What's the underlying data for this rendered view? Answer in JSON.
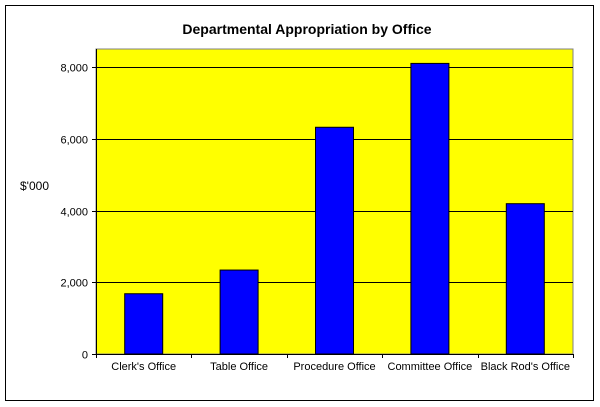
{
  "chart_data": {
    "type": "bar",
    "title": "Departmental Appropriation by Office",
    "xlabel": "",
    "ylabel": "$'000",
    "categories": [
      "Clerk's Office",
      "Table Office",
      "Procedure Office",
      "Committee Office",
      "Black Rod's Office"
    ],
    "values": [
      1680,
      2340,
      6320,
      8100,
      4190
    ],
    "ylim": [
      0,
      8000
    ],
    "yticks": [
      0,
      2000,
      4000,
      6000,
      8000
    ],
    "ytick_labels": [
      "0",
      "2,000",
      "4,000",
      "6,000",
      "8,000"
    ],
    "grid": true,
    "legend": "none"
  },
  "colors": {
    "plot_background": "#ffff00",
    "bar_fill": "#0000ff",
    "bar_stroke": "#000000",
    "gridline": "#000000"
  }
}
